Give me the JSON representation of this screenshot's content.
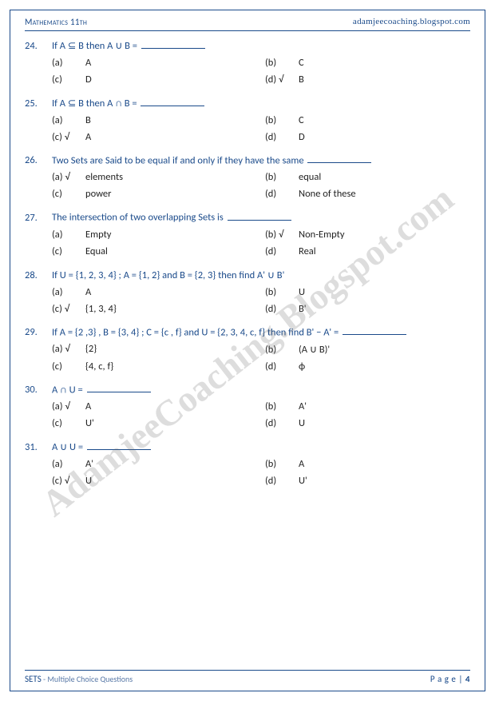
{
  "header": {
    "left": "Mathematics 11th",
    "right": "adamjeecoaching.blogspot.com"
  },
  "watermark": "AdamjeeCoaching.Blogspot.com",
  "footer": {
    "subject": "SETS",
    "subtitle": " - Multiple Choice Questions",
    "page_label": "P a g e  | ",
    "page_num": "4"
  },
  "questions": [
    {
      "num": "24.",
      "text": "If A ⊆ B then A ∪ B =",
      "has_blank": true,
      "options": [
        {
          "label": "(a)",
          "text": "A",
          "correct": false
        },
        {
          "label": "(b)",
          "text": "C",
          "correct": false
        },
        {
          "label": "(c)",
          "text": "D",
          "correct": false
        },
        {
          "label": "(d)",
          "text": "B",
          "correct": true
        }
      ]
    },
    {
      "num": "25.",
      "text": "If A ⊆ B then A ∩ B =",
      "has_blank": true,
      "options": [
        {
          "label": "(a)",
          "text": "B",
          "correct": false
        },
        {
          "label": "(b)",
          "text": "C",
          "correct": false
        },
        {
          "label": "(c)",
          "text": "A",
          "correct": true
        },
        {
          "label": "(d)",
          "text": "D",
          "correct": false
        }
      ]
    },
    {
      "num": "26.",
      "text": "Two Sets are Said to be equal if and only if they have the same",
      "has_blank": true,
      "options": [
        {
          "label": "(a)",
          "text": "elements",
          "correct": true
        },
        {
          "label": "(b)",
          "text": "equal",
          "correct": false
        },
        {
          "label": "(c)",
          "text": "power",
          "correct": false
        },
        {
          "label": "(d)",
          "text": "None of these",
          "correct": false
        }
      ]
    },
    {
      "num": "27.",
      "text": "The intersection of two overlapping Sets is",
      "has_blank": true,
      "options": [
        {
          "label": "(a)",
          "text": "Empty",
          "correct": false
        },
        {
          "label": "(b)",
          "text": "Non-Empty",
          "correct": true
        },
        {
          "label": "(c)",
          "text": "Equal",
          "correct": false
        },
        {
          "label": "(d)",
          "text": "Real",
          "correct": false
        }
      ]
    },
    {
      "num": "28.",
      "text": "If U = {1, 2, 3, 4} ; A = {1, 2} and B = {2, 3} then find A' ∪ B'",
      "has_blank": false,
      "options": [
        {
          "label": "(a)",
          "text": "A",
          "correct": false
        },
        {
          "label": "(b)",
          "text": "U",
          "correct": false
        },
        {
          "label": "(c)",
          "text": "{1, 3, 4}",
          "correct": true
        },
        {
          "label": "(d)",
          "text": "B'",
          "correct": false
        }
      ]
    },
    {
      "num": "29.",
      "text": "If A = {2 ,3} , B = {3, 4} ; C = {c , f} and U = {2, 3, 4, c, f} then find B' − A' =",
      "has_blank": true,
      "options": [
        {
          "label": "(a)",
          "text": "{2}",
          "correct": true
        },
        {
          "label": "(b)",
          "text": "(A ∪ B)'",
          "correct": false
        },
        {
          "label": "(c)",
          "text": "{4, c, f}",
          "correct": false
        },
        {
          "label": "(d)",
          "text": "ϕ",
          "correct": false
        }
      ]
    },
    {
      "num": "30.",
      "text": "A ∩ U =",
      "has_blank": true,
      "options": [
        {
          "label": "(a)",
          "text": "A",
          "correct": true
        },
        {
          "label": "(b)",
          "text": "A'",
          "correct": false
        },
        {
          "label": "(c)",
          "text": "U'",
          "correct": false
        },
        {
          "label": "(d)",
          "text": "U",
          "correct": false
        }
      ]
    },
    {
      "num": "31.",
      "text": "A ∪ U =",
      "has_blank": true,
      "options": [
        {
          "label": "(a)",
          "text": "A'",
          "correct": false
        },
        {
          "label": "(b)",
          "text": "A",
          "correct": false
        },
        {
          "label": "(c)",
          "text": "U",
          "correct": true
        },
        {
          "label": "(d)",
          "text": "U'",
          "correct": false
        }
      ]
    }
  ]
}
